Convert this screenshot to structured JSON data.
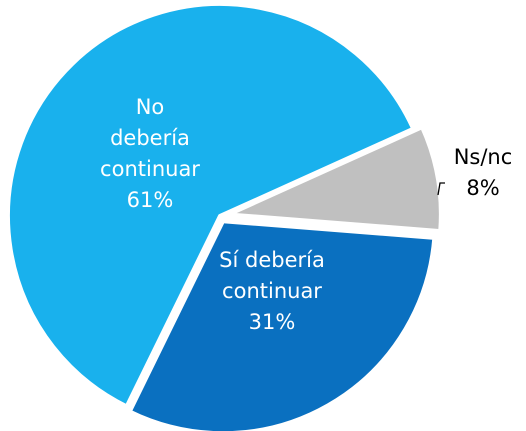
{
  "chart_data": {
    "type": "pie",
    "categories": [
      "Ns/nc",
      "Sí debería continuar",
      "No debería continuar"
    ],
    "values": [
      8,
      31,
      61
    ],
    "value_labels": [
      "8%",
      "31%",
      "61%"
    ],
    "colors": [
      "#c0c0c0",
      "#0a70c0",
      "#19b1ed"
    ]
  }
}
